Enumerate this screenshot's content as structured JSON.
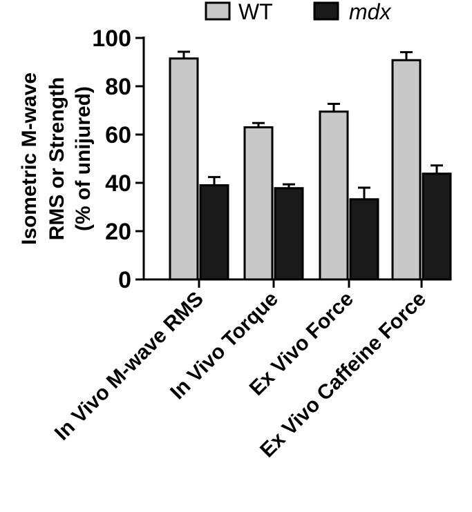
{
  "chart_data": {
    "type": "bar",
    "categories": [
      "In Vivo M-wave RMS",
      "In Vivo Torque",
      "Ex Vivo Force",
      "Ex Vivo Caffeine Force"
    ],
    "series": [
      {
        "name": "WT",
        "values": [
          91.5,
          63.0,
          69.5,
          90.8
        ],
        "errors": [
          2.8,
          1.8,
          3.2,
          3.3
        ],
        "color": "#c8c8c8"
      },
      {
        "name": "mdx",
        "values": [
          39.0,
          37.8,
          33.2,
          43.8
        ],
        "errors": [
          3.4,
          1.6,
          4.8,
          3.4
        ],
        "color": "#1a1a1a"
      }
    ],
    "ylabel_lines": [
      "Isometric M-wave",
      "RMS or Strength",
      "(% of unijured)"
    ],
    "xlabel": "",
    "ylim": [
      0,
      100
    ],
    "yticks": [
      0,
      20,
      40,
      60,
      80,
      100
    ],
    "legend_position": "top"
  }
}
